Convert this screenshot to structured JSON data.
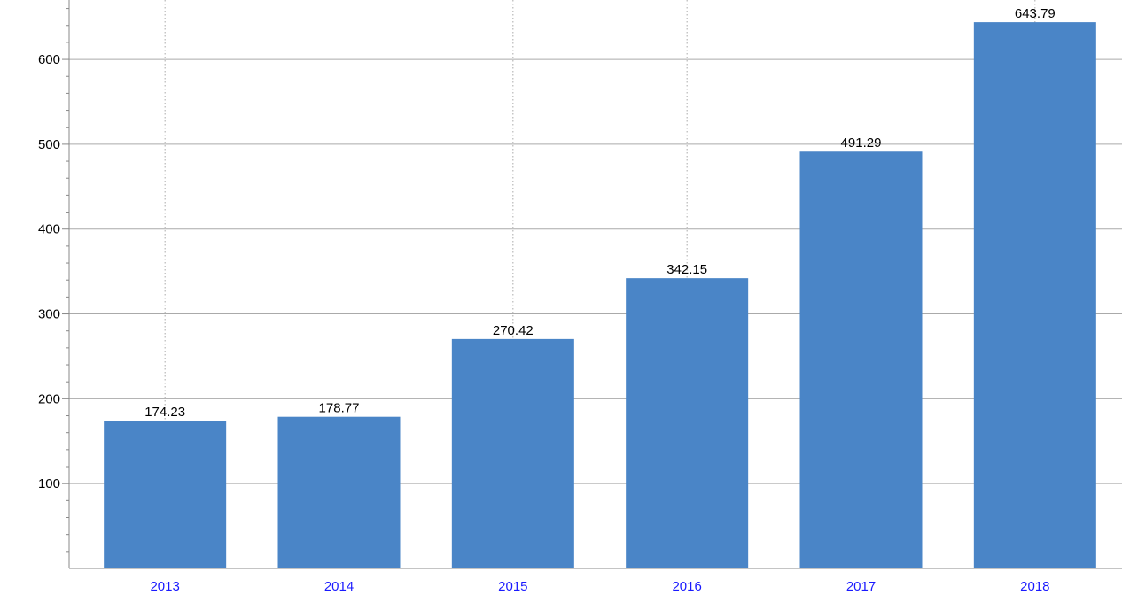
{
  "chart_data": {
    "type": "bar",
    "categories": [
      "2013",
      "2014",
      "2015",
      "2016",
      "2017",
      "2018"
    ],
    "values": [
      174.23,
      178.77,
      270.42,
      342.15,
      491.29,
      643.79
    ],
    "data_labels": [
      "174.23",
      "178.77",
      "270.42",
      "342.15",
      "491.29",
      "643.79"
    ],
    "title": "",
    "xlabel": "",
    "ylabel": "",
    "ylim": [
      0,
      670
    ],
    "y_ticks": [
      100,
      200,
      300,
      400,
      500,
      600
    ],
    "y_tick_labels": [
      "100",
      "200",
      "300",
      "400",
      "500",
      "600"
    ],
    "grid": {
      "horizontal": "solid",
      "vertical": "dotted"
    },
    "legend": "none",
    "colors": {
      "bar": "#4a85c7",
      "category_label": "#1a1aff",
      "grid": "#aaaaaa",
      "axis": "#888888"
    }
  }
}
